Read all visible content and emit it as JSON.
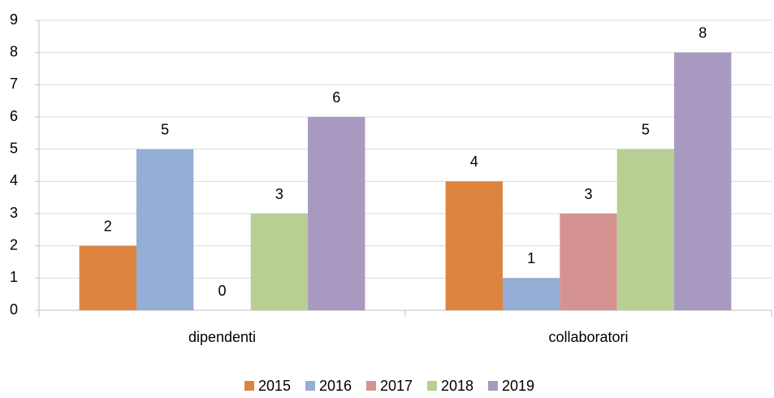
{
  "chart_data": {
    "type": "bar",
    "categories": [
      "dipendenti",
      "collaboratori"
    ],
    "series": [
      {
        "name": "2015",
        "color": "#dd8441",
        "values": [
          2,
          4
        ]
      },
      {
        "name": "2016",
        "color": "#95aed5",
        "values": [
          5,
          1
        ]
      },
      {
        "name": "2017",
        "color": "#d49391",
        "values": [
          0,
          3
        ]
      },
      {
        "name": "2018",
        "color": "#b8cf94",
        "values": [
          3,
          5
        ]
      },
      {
        "name": "2019",
        "color": "#a899c1",
        "values": [
          6,
          8
        ]
      }
    ],
    "ylim": [
      0,
      9
    ],
    "yticks": [
      0,
      1,
      2,
      3,
      4,
      5,
      6,
      7,
      8,
      9
    ],
    "grid": true,
    "legend": "bottom"
  }
}
